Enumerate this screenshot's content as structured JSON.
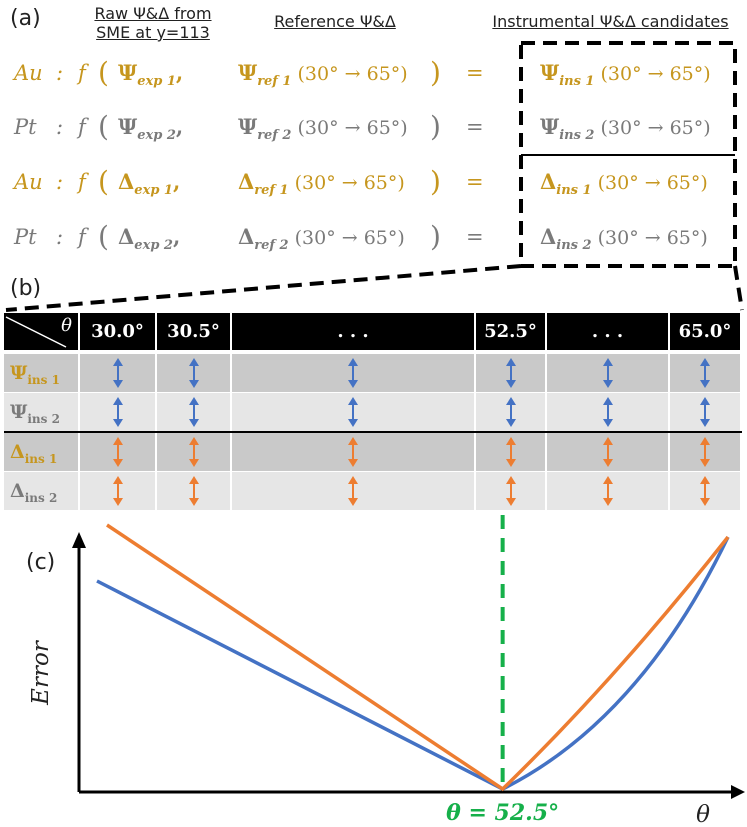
{
  "panel_labels": {
    "a": "(a)",
    "b": "(b)",
    "c": "(c)"
  },
  "headers": {
    "raw_line1": "Raw Ψ&Δ from",
    "raw_line2": "SME at y=113",
    "reference": "Reference Ψ&Δ",
    "instrumental": "Instrumental Ψ&Δ candidates"
  },
  "equations": [
    {
      "material": "Au",
      "sym": "Ψ",
      "exp_sub": "exp 1",
      "ref_sub": "ref 1",
      "ins_sub": "ins 1",
      "color": "#C6961E"
    },
    {
      "material": "Pt",
      "sym": "Ψ",
      "exp_sub": "exp 2",
      "ref_sub": "ref 2",
      "ins_sub": "ins 2",
      "color": "#7a7a7a"
    },
    {
      "material": "Au",
      "sym": "Δ",
      "exp_sub": "exp 1",
      "ref_sub": "ref 1",
      "ins_sub": "ins 1",
      "color": "#C6961E"
    },
    {
      "material": "Pt",
      "sym": "Δ",
      "exp_sub": "exp 2",
      "ref_sub": "ref 2",
      "ins_sub": "ins 2",
      "color": "#7a7a7a"
    }
  ],
  "eq_tokens": {
    "colon": ":",
    "func": "f",
    "open": "(",
    "comma": ",",
    "close": ")",
    "equals": "=",
    "range": "(30° → 65°)"
  },
  "table": {
    "corner_label": "θ",
    "columns": [
      "30.0°",
      "30.5°",
      ". . .",
      "52.5°",
      ". . .",
      "65.0°"
    ],
    "rows": [
      {
        "sym": "Ψ",
        "sub": "ins 1",
        "color": "#C6961E",
        "arrow_color": "#4472C4"
      },
      {
        "sym": "Ψ",
        "sub": "ins 2",
        "color": "#7a7a7a",
        "arrow_color": "#4472C4"
      },
      {
        "sym": "Δ",
        "sub": "ins 1",
        "color": "#C6961E",
        "arrow_color": "#ED7D31"
      },
      {
        "sym": "Δ",
        "sub": "ins 2",
        "color": "#7a7a7a",
        "arrow_color": "#ED7D31"
      }
    ]
  },
  "chart_data": {
    "type": "line",
    "title": "",
    "xlabel": "θ",
    "ylabel": "Error",
    "annotation": "θ = 52.5°",
    "minimum_x": 52.5,
    "series": [
      {
        "name": "blue",
        "color": "#4472C4"
      },
      {
        "name": "orange",
        "color": "#ED7D31"
      }
    ],
    "marker_color": "#16B04A"
  }
}
